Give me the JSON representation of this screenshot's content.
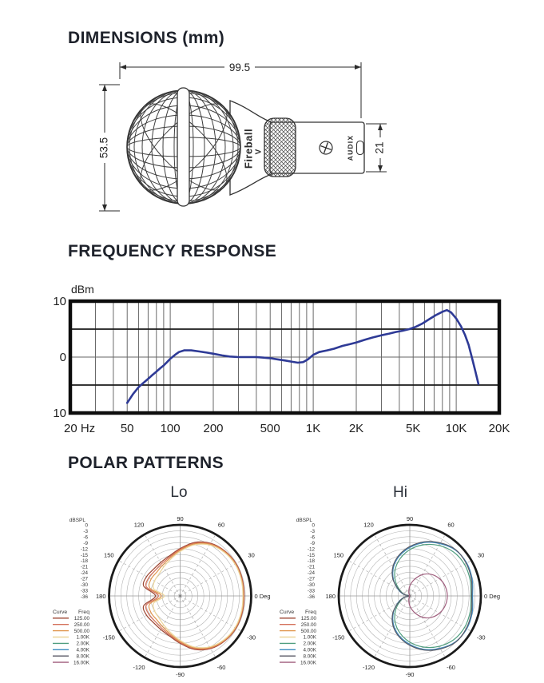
{
  "page": {
    "background": "#ffffff"
  },
  "dimensions": {
    "title": "DIMENSIONS (mm)",
    "length_mm": "99.5",
    "diameter_mm": "53.5",
    "rear_height_mm": "21",
    "model": "Fireball",
    "model_suffix": "V",
    "brand": "AUDIX"
  },
  "chart_data": [
    {
      "type": "line",
      "title": "FREQUENCY RESPONSE",
      "ylabel": "dBm",
      "ylim": [
        -10,
        10
      ],
      "yticks": [
        {
          "v": 10,
          "label": "10"
        },
        {
          "v": 0,
          "label": "0"
        },
        {
          "v": -10,
          "label": "10"
        }
      ],
      "xticks": [
        {
          "f": 20,
          "label": "20 Hz"
        },
        {
          "f": 50,
          "label": "50"
        },
        {
          "f": 100,
          "label": "100"
        },
        {
          "f": 200,
          "label": "200"
        },
        {
          "f": 500,
          "label": "500"
        },
        {
          "f": 1000,
          "label": "1K"
        },
        {
          "f": 2000,
          "label": "2K"
        },
        {
          "f": 5000,
          "label": "5K"
        },
        {
          "f": 10000,
          "label": "10K"
        },
        {
          "f": 20000,
          "label": "20K"
        }
      ],
      "grid_minor_hz": [
        30,
        40,
        50,
        60,
        70,
        80,
        90,
        100,
        200,
        300,
        400,
        500,
        600,
        700,
        800,
        900,
        1000,
        2000,
        3000,
        4000,
        5000,
        6000,
        7000,
        8000,
        9000,
        10000
      ],
      "grid_major_db": [
        5,
        -5
      ],
      "line_color": "#2e3a96",
      "points_hz_db": [
        [
          50,
          -8.2
        ],
        [
          55,
          -6.6
        ],
        [
          60,
          -5.4
        ],
        [
          65,
          -4.6
        ],
        [
          70,
          -3.9
        ],
        [
          75,
          -3.2
        ],
        [
          80,
          -2.6
        ],
        [
          85,
          -2.0
        ],
        [
          90,
          -1.5
        ],
        [
          95,
          -0.9
        ],
        [
          100,
          -0.3
        ],
        [
          108,
          0.4
        ],
        [
          115,
          0.9
        ],
        [
          125,
          1.2
        ],
        [
          140,
          1.2
        ],
        [
          160,
          1.0
        ],
        [
          180,
          0.8
        ],
        [
          200,
          0.6
        ],
        [
          230,
          0.3
        ],
        [
          260,
          0.1
        ],
        [
          300,
          0.0
        ],
        [
          350,
          0.0
        ],
        [
          400,
          0.0
        ],
        [
          450,
          -0.1
        ],
        [
          500,
          -0.2
        ],
        [
          560,
          -0.4
        ],
        [
          630,
          -0.6
        ],
        [
          700,
          -0.8
        ],
        [
          780,
          -1.0
        ],
        [
          850,
          -0.9
        ],
        [
          920,
          -0.4
        ],
        [
          1000,
          0.4
        ],
        [
          1100,
          0.9
        ],
        [
          1250,
          1.2
        ],
        [
          1400,
          1.5
        ],
        [
          1600,
          2.0
        ],
        [
          1800,
          2.3
        ],
        [
          2000,
          2.6
        ],
        [
          2300,
          3.1
        ],
        [
          2600,
          3.5
        ],
        [
          3000,
          3.9
        ],
        [
          3400,
          4.2
        ],
        [
          3800,
          4.5
        ],
        [
          4200,
          4.7
        ],
        [
          4700,
          5.0
        ],
        [
          5200,
          5.4
        ],
        [
          5800,
          6.0
        ],
        [
          6500,
          6.8
        ],
        [
          7200,
          7.5
        ],
        [
          8000,
          8.1
        ],
        [
          8600,
          8.4
        ],
        [
          9200,
          8.0
        ],
        [
          10000,
          6.9
        ],
        [
          10800,
          5.5
        ],
        [
          11500,
          4.0
        ],
        [
          12200,
          2.2
        ],
        [
          13000,
          -0.5
        ],
        [
          13600,
          -2.5
        ],
        [
          14300,
          -4.8
        ]
      ]
    },
    {
      "type": "polar",
      "title": "Lo",
      "unit": "dBSPL",
      "db_ticks": [
        "0",
        "-3",
        "-6",
        "-9",
        "-12",
        "-15",
        "-18",
        "-21",
        "-24",
        "-27",
        "-30",
        "-33",
        "-36"
      ],
      "db_min": -36,
      "angle_ticks": [
        {
          "deg": 90,
          "label": "90"
        },
        {
          "deg": 60,
          "label": "60"
        },
        {
          "deg": 30,
          "label": "30"
        },
        {
          "deg": 0,
          "label": "0 Deg"
        },
        {
          "deg": -30,
          "label": "-30"
        },
        {
          "deg": -60,
          "label": "-60"
        },
        {
          "deg": -90,
          "label": "-90"
        },
        {
          "deg": -120,
          "label": "-120"
        },
        {
          "deg": -150,
          "label": "-150"
        },
        {
          "deg": 180,
          "label": "180"
        },
        {
          "deg": 150,
          "label": "150"
        },
        {
          "deg": 120,
          "label": "120"
        }
      ],
      "legend": {
        "headers": [
          "Curve",
          "Freq"
        ],
        "entries": [
          {
            "label": "125.00",
            "color": "#9c4632"
          },
          {
            "label": "250.00",
            "color": "#d4705a"
          },
          {
            "label": "500.00",
            "color": "#e0954e"
          },
          {
            "label": "1.00K",
            "color": "#ecd59a"
          },
          {
            "label": "2.00K",
            "color": "#4f9e7f"
          },
          {
            "label": "4.00K",
            "color": "#3d8cc0"
          },
          {
            "label": "8.00K",
            "color": "#5a5a66"
          },
          {
            "label": "16.00K",
            "color": "#a05f7e"
          }
        ]
      },
      "curves": [
        {
          "freq": "125.00",
          "color": "#9c4632",
          "points_deg_db": [
            [
              0,
              -3.6
            ],
            [
              15,
              -3.4
            ],
            [
              30,
              -3.3
            ],
            [
              45,
              -3.9
            ],
            [
              60,
              -5.2
            ],
            [
              75,
              -8.0
            ],
            [
              90,
              -12.0
            ],
            [
              105,
              -15.0
            ],
            [
              120,
              -16.4
            ],
            [
              135,
              -16.9
            ],
            [
              150,
              -16.4
            ],
            [
              165,
              -16.9
            ],
            [
              180,
              -23.5
            ]
          ]
        },
        {
          "freq": "250.00",
          "color": "#d4705a",
          "points_deg_db": [
            [
              0,
              -3.8
            ],
            [
              15,
              -3.6
            ],
            [
              30,
              -3.5
            ],
            [
              45,
              -4.1
            ],
            [
              60,
              -5.5
            ],
            [
              75,
              -8.4
            ],
            [
              90,
              -12.4
            ],
            [
              105,
              -15.6
            ],
            [
              120,
              -17.2
            ],
            [
              135,
              -17.9
            ],
            [
              150,
              -17.6
            ],
            [
              165,
              -18.3
            ],
            [
              180,
              -25.0
            ]
          ]
        },
        {
          "freq": "500.00",
          "color": "#e0954e",
          "points_deg_db": [
            [
              0,
              -4.0
            ],
            [
              15,
              -3.8
            ],
            [
              30,
              -3.7
            ],
            [
              45,
              -4.3
            ],
            [
              60,
              -5.8
            ],
            [
              75,
              -8.8
            ],
            [
              90,
              -12.9
            ],
            [
              105,
              -16.2
            ],
            [
              120,
              -18.1
            ],
            [
              135,
              -19.1
            ],
            [
              150,
              -19.0
            ],
            [
              165,
              -20.0
            ],
            [
              180,
              -26.5
            ]
          ]
        },
        {
          "freq": "1.00K",
          "color": "#ecd59a",
          "points_deg_db": [
            [
              0,
              -4.2
            ],
            [
              15,
              -4.0
            ],
            [
              30,
              -3.9
            ],
            [
              45,
              -4.6
            ],
            [
              60,
              -6.2
            ],
            [
              75,
              -9.3
            ],
            [
              90,
              -13.5
            ],
            [
              105,
              -16.9
            ],
            [
              120,
              -19.2
            ],
            [
              135,
              -20.6
            ],
            [
              150,
              -21.0
            ],
            [
              165,
              -22.2
            ],
            [
              180,
              -28.0
            ]
          ]
        }
      ]
    },
    {
      "type": "polar",
      "title": "Hi",
      "unit": "dBSPL",
      "db_ticks": [
        "0",
        "-3",
        "-6",
        "-9",
        "-12",
        "-15",
        "-18",
        "-21",
        "-24",
        "-27",
        "-30",
        "-33",
        "-36"
      ],
      "db_min": -36,
      "angle_ticks": [
        {
          "deg": 90,
          "label": "90"
        },
        {
          "deg": 60,
          "label": "60"
        },
        {
          "deg": 30,
          "label": "30"
        },
        {
          "deg": 0,
          "label": "0 Deg"
        },
        {
          "deg": -30,
          "label": "-30"
        },
        {
          "deg": -60,
          "label": "-60"
        },
        {
          "deg": -90,
          "label": "-90"
        },
        {
          "deg": -120,
          "label": "-120"
        },
        {
          "deg": -150,
          "label": "-150"
        },
        {
          "deg": 180,
          "label": "180"
        },
        {
          "deg": 150,
          "label": "150"
        },
        {
          "deg": 120,
          "label": "120"
        }
      ],
      "legend": {
        "headers": [
          "Curve",
          "Freq"
        ],
        "entries": [
          {
            "label": "125.00",
            "color": "#9c4632"
          },
          {
            "label": "250.00",
            "color": "#d4705a"
          },
          {
            "label": "500.00",
            "color": "#e0954e"
          },
          {
            "label": "1.00K",
            "color": "#ecd59a"
          },
          {
            "label": "2.00K",
            "color": "#4f9e7f"
          },
          {
            "label": "4.00K",
            "color": "#3d8cc0"
          },
          {
            "label": "8.00K",
            "color": "#5a5a66"
          },
          {
            "label": "16.00K",
            "color": "#a05f7e"
          }
        ]
      },
      "curves": [
        {
          "freq": "2.00K",
          "color": "#4f9e7f",
          "points_deg_db": [
            [
              0,
              -5.0
            ],
            [
              15,
              -4.4
            ],
            [
              30,
              -4.0
            ],
            [
              45,
              -4.6
            ],
            [
              60,
              -6.5
            ],
            [
              75,
              -9.2
            ],
            [
              90,
              -12.6
            ],
            [
              105,
              -16.6
            ],
            [
              120,
              -21.0
            ],
            [
              135,
              -25.8
            ],
            [
              150,
              -30.2
            ],
            [
              165,
              -33.2
            ],
            [
              180,
              -35.5
            ]
          ]
        },
        {
          "freq": "4.00K",
          "color": "#3d8cc0",
          "points_deg_db": [
            [
              0,
              -4.2
            ],
            [
              15,
              -3.3
            ],
            [
              30,
              -2.7
            ],
            [
              45,
              -3.2
            ],
            [
              60,
              -5.4
            ],
            [
              75,
              -8.0
            ],
            [
              90,
              -11.5
            ],
            [
              105,
              -15.2
            ],
            [
              120,
              -19.4
            ],
            [
              135,
              -24.3
            ],
            [
              150,
              -29.0
            ],
            [
              165,
              -32.6
            ],
            [
              180,
              -35.5
            ]
          ]
        },
        {
          "freq": "8.00K",
          "color": "#5a5a66",
          "points_deg_db": [
            [
              0,
              -4.6
            ],
            [
              15,
              -3.7
            ],
            [
              30,
              -3.0
            ],
            [
              45,
              -3.0
            ],
            [
              60,
              -5.0
            ],
            [
              75,
              -7.6
            ],
            [
              90,
              -11.0
            ],
            [
              105,
              -14.7
            ],
            [
              120,
              -18.9
            ],
            [
              135,
              -23.9
            ],
            [
              150,
              -29.4
            ],
            [
              165,
              -33.0
            ],
            [
              180,
              -35.8
            ]
          ]
        },
        {
          "freq": "16.00K",
          "color": "#a05f7e",
          "points_deg_db": [
            [
              0,
              -17.0
            ],
            [
              15,
              -17.4
            ],
            [
              30,
              -18.6
            ],
            [
              45,
              -20.6
            ],
            [
              60,
              -23.6
            ],
            [
              75,
              -27.5
            ],
            [
              90,
              -31.0
            ],
            [
              105,
              -34.0
            ],
            [
              120,
              -35.8
            ],
            [
              135,
              -36
            ],
            [
              150,
              -36
            ],
            [
              165,
              -36
            ],
            [
              180,
              -36
            ]
          ]
        }
      ]
    }
  ]
}
